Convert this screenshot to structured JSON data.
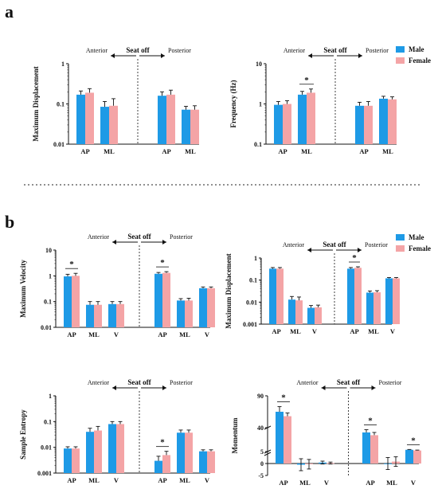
{
  "panel_labels": [
    "a",
    "b"
  ],
  "colors": {
    "male": "#1e9ae6",
    "female": "#f4a4a6",
    "axis": "#111111"
  },
  "legend_labels": {
    "male": "Male",
    "female": "Female"
  },
  "annotations": {
    "anterior": "Anterior",
    "posterior": "Posterior",
    "seat_off": "Seat off",
    "significance": "*"
  },
  "chart_data": [
    {
      "id": "a1",
      "type": "bar",
      "scale": "log",
      "ylabel": "Maximum Displacement",
      "ylim": [
        0.01,
        1
      ],
      "yticks": [
        "0.01",
        "0.1",
        "1"
      ],
      "groups": [
        {
          "phase": "Anterior",
          "categories": [
            "AP",
            "ML"
          ],
          "male": [
            0.17,
            0.085
          ],
          "female": [
            0.19,
            0.09
          ],
          "male_err": [
            0.04,
            0.03
          ],
          "female_err": [
            0.05,
            0.045
          ],
          "sig": [
            false,
            false
          ]
        },
        {
          "phase": "Posterior",
          "categories": [
            "AP",
            "ML"
          ],
          "male": [
            0.16,
            0.072
          ],
          "female": [
            0.17,
            0.072
          ],
          "male_err": [
            0.04,
            0.015
          ],
          "female_err": [
            0.05,
            0.018
          ],
          "sig": [
            false,
            false
          ]
        }
      ]
    },
    {
      "id": "a2",
      "type": "bar",
      "scale": "log",
      "ylabel": "Frequency (Hz)",
      "ylim": [
        0.1,
        10
      ],
      "yticks": [
        "0.1",
        "1",
        "10"
      ],
      "groups": [
        {
          "phase": "Anterior",
          "categories": [
            "AP",
            "ML"
          ],
          "male": [
            0.95,
            1.7
          ],
          "female": [
            1.0,
            1.9
          ],
          "male_err": [
            0.2,
            0.35
          ],
          "female_err": [
            0.2,
            0.45
          ],
          "sig": [
            false,
            true
          ]
        },
        {
          "phase": "Posterior",
          "categories": [
            "AP",
            "ML"
          ],
          "male": [
            0.9,
            1.35
          ],
          "female": [
            0.9,
            1.3
          ],
          "male_err": [
            0.2,
            0.2
          ],
          "female_err": [
            0.25,
            0.2
          ],
          "sig": [
            false,
            false
          ]
        }
      ]
    },
    {
      "id": "b1",
      "type": "bar",
      "scale": "log",
      "ylabel": "Maximum Velocity",
      "ylim": [
        0.01,
        10
      ],
      "yticks": [
        "0.01",
        "0.1",
        "1",
        "10"
      ],
      "groups": [
        {
          "phase": "Anterior",
          "categories": [
            "AP",
            "ML",
            "V"
          ],
          "male": [
            0.95,
            0.075,
            0.08
          ],
          "female": [
            1.0,
            0.075,
            0.08
          ],
          "male_err": [
            0.2,
            0.025,
            0.02
          ],
          "female_err": [
            0.25,
            0.025,
            0.02
          ],
          "sig": [
            true,
            false,
            false
          ]
        },
        {
          "phase": "Posterior",
          "categories": [
            "AP",
            "ML",
            "V"
          ],
          "male": [
            1.2,
            0.11,
            0.33
          ],
          "female": [
            1.3,
            0.11,
            0.33
          ],
          "male_err": [
            0.15,
            0.02,
            0.04
          ],
          "female_err": [
            0.15,
            0.025,
            0.04
          ],
          "sig": [
            true,
            false,
            false
          ]
        }
      ]
    },
    {
      "id": "b2",
      "type": "bar",
      "scale": "log",
      "ylabel": "Maximum Displacement",
      "ylim": [
        0.001,
        1
      ],
      "yticks": [
        "0.001",
        "0.01",
        "0.1",
        "1"
      ],
      "groups": [
        {
          "phase": "Anterior",
          "categories": [
            "AP",
            "ML",
            "V"
          ],
          "male": [
            0.33,
            0.013,
            0.0055
          ],
          "female": [
            0.33,
            0.012,
            0.0058
          ],
          "male_err": [
            0.04,
            0.005,
            0.0015
          ],
          "female_err": [
            0.04,
            0.005,
            0.0015
          ],
          "sig": [
            false,
            false,
            false
          ]
        },
        {
          "phase": "Posterior",
          "categories": [
            "AP",
            "ML",
            "V"
          ],
          "male": [
            0.33,
            0.027,
            0.12
          ],
          "female": [
            0.36,
            0.028,
            0.12
          ],
          "male_err": [
            0.04,
            0.005,
            0.01
          ],
          "female_err": [
            0.04,
            0.005,
            0.01
          ],
          "sig": [
            true,
            false,
            false
          ]
        }
      ]
    },
    {
      "id": "b3",
      "type": "bar",
      "scale": "log",
      "ylabel": "Sample Entropy",
      "ylim": [
        0.001,
        1
      ],
      "yticks": [
        "0.001",
        "0.01",
        "0.1",
        "1"
      ],
      "groups": [
        {
          "phase": "Anterior",
          "categories": [
            "AP",
            "ML",
            "V"
          ],
          "male": [
            0.009,
            0.04,
            0.08
          ],
          "female": [
            0.009,
            0.045,
            0.08
          ],
          "male_err": [
            0.0015,
            0.015,
            0.02
          ],
          "female_err": [
            0.0015,
            0.02,
            0.02
          ],
          "sig": [
            false,
            false,
            false
          ]
        },
        {
          "phase": "Posterior",
          "categories": [
            "AP",
            "ML",
            "V"
          ],
          "male": [
            0.003,
            0.037,
            0.007
          ],
          "female": [
            0.005,
            0.037,
            0.007
          ],
          "male_err": [
            0.0015,
            0.01,
            0.001
          ],
          "female_err": [
            0.002,
            0.01,
            0.001
          ],
          "sig": [
            true,
            false,
            false
          ]
        }
      ]
    },
    {
      "id": "b4",
      "type": "bar",
      "scale": "broken",
      "ylabel": "Momentum",
      "yticks": [
        "-5",
        "0",
        "5",
        "40",
        "90"
      ],
      "groups": [
        {
          "phase": "Anterior",
          "categories": [
            "AP",
            "ML",
            "V"
          ],
          "male": [
            65,
            -0.5,
            0.4
          ],
          "female": [
            58,
            -0.3,
            0.2
          ],
          "male_err": [
            8,
            2.5,
            0.6
          ],
          "female_err": [
            5,
            2,
            0.4
          ],
          "sig": [
            true,
            false,
            false
          ]
        },
        {
          "phase": "Posterior",
          "categories": [
            "AP",
            "ML",
            "V"
          ],
          "male": [
            33,
            0,
            7.6
          ],
          "female": [
            29,
            0.8,
            6.6
          ],
          "male_err": [
            4,
            2.5,
            0.5
          ],
          "female_err": [
            4,
            2,
            0.6
          ],
          "sig": [
            true,
            false,
            true
          ]
        }
      ]
    }
  ]
}
